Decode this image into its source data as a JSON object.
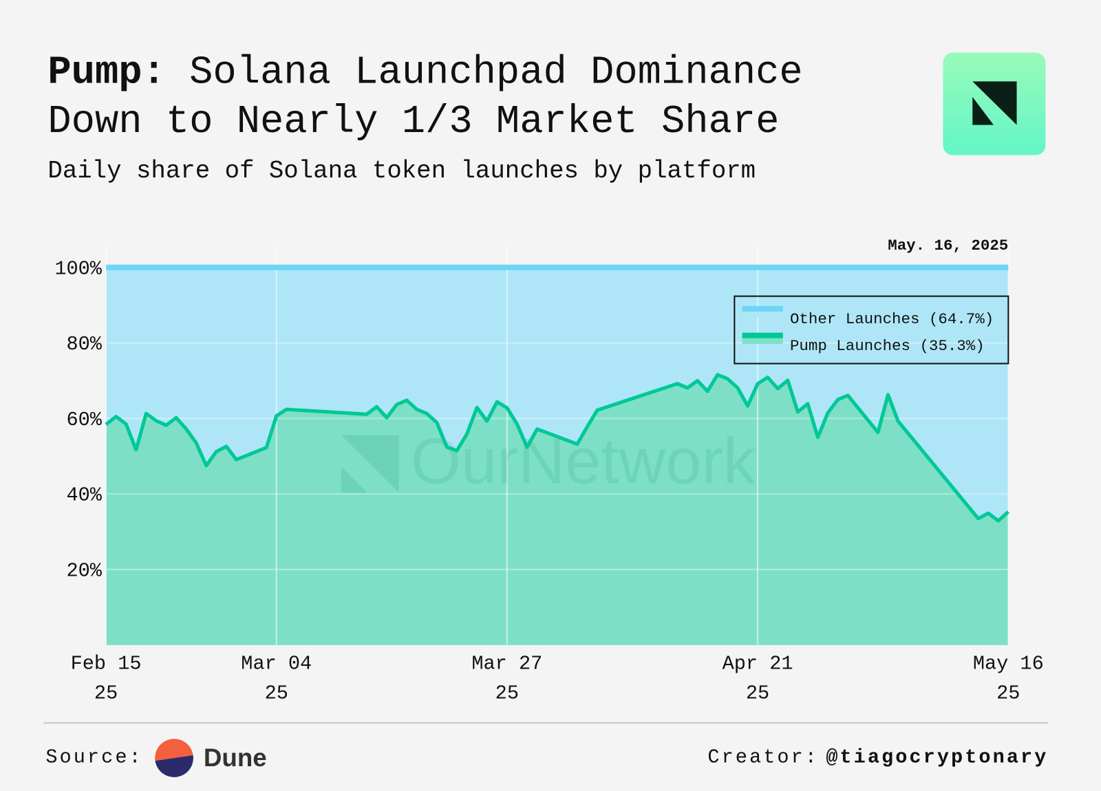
{
  "header": {
    "title_lead": "Pump:",
    "title": "Solana Launchpad Dominance Down to Nearly 1/3 Market Share",
    "subtitle": "Daily share of Solana token launches by platform"
  },
  "chart_data": {
    "type": "stacked_area",
    "annotation": "May. 16, 2025",
    "watermark": "OurNetwork",
    "x": [
      "2025-02-15",
      "2025-02-16",
      "2025-02-17",
      "2025-02-18",
      "2025-02-19",
      "2025-02-20",
      "2025-02-21",
      "2025-02-22",
      "2025-02-23",
      "2025-02-24",
      "2025-02-25",
      "2025-02-26",
      "2025-02-27",
      "2025-02-28",
      "2025-03-03",
      "2025-03-04",
      "2025-03-05",
      "2025-03-13",
      "2025-03-14",
      "2025-03-15",
      "2025-03-16",
      "2025-03-17",
      "2025-03-18",
      "2025-03-19",
      "2025-03-20",
      "2025-03-21",
      "2025-03-22",
      "2025-03-23",
      "2025-03-24",
      "2025-03-25",
      "2025-03-26",
      "2025-03-27",
      "2025-03-28",
      "2025-03-29",
      "2025-03-30",
      "2025-04-03",
      "2025-04-04",
      "2025-04-05",
      "2025-04-13",
      "2025-04-14",
      "2025-04-15",
      "2025-04-16",
      "2025-04-17",
      "2025-04-18",
      "2025-04-19",
      "2025-04-20",
      "2025-04-21",
      "2025-04-22",
      "2025-04-23",
      "2025-04-24",
      "2025-04-25",
      "2025-04-26",
      "2025-04-27",
      "2025-04-28",
      "2025-04-29",
      "2025-04-30",
      "2025-05-03",
      "2025-05-04",
      "2025-05-05",
      "2025-05-13",
      "2025-05-14",
      "2025-05-15",
      "2025-05-16"
    ],
    "series": [
      {
        "name": "Other Launches (64.7%)",
        "color": "#6dd5f7",
        "fill": "#aee6f7",
        "values": [
          41.6,
          39.5,
          41.5,
          48.3,
          38.7,
          40.6,
          41.8,
          39.8,
          42.8,
          46.5,
          52.5,
          48.8,
          47.4,
          50.9,
          47.7,
          39.3,
          37.6,
          38.9,
          36.9,
          39.8,
          36.3,
          35.2,
          37.6,
          38.7,
          41.1,
          47.6,
          48.5,
          44.1,
          37.1,
          40.7,
          35.6,
          37.2,
          41.5,
          47.6,
          42.8,
          46.8,
          42.2,
          37.8,
          30.8,
          31.9,
          30.0,
          32.8,
          28.4,
          29.5,
          31.9,
          36.7,
          30.8,
          29.1,
          32.1,
          29.9,
          38.3,
          36.1,
          45.0,
          38.5,
          35.0,
          33.9,
          43.7,
          33.7,
          40.7,
          66.5,
          65.1,
          67.1,
          64.7
        ]
      },
      {
        "name": "Pump Launches (35.3%)",
        "color": "#00c896",
        "fill": "#7de0c6",
        "values": [
          58.4,
          60.5,
          58.5,
          51.7,
          61.3,
          59.4,
          58.2,
          60.2,
          57.2,
          53.5,
          47.5,
          51.2,
          52.6,
          49.1,
          52.3,
          60.7,
          62.4,
          61.1,
          63.1,
          60.2,
          63.7,
          64.8,
          62.4,
          61.3,
          58.9,
          52.4,
          51.5,
          55.9,
          62.9,
          59.3,
          64.4,
          62.8,
          58.5,
          52.4,
          57.2,
          53.2,
          57.8,
          62.2,
          69.2,
          68.1,
          70.0,
          67.2,
          71.6,
          70.5,
          68.1,
          63.3,
          69.2,
          70.9,
          67.9,
          70.1,
          61.7,
          63.9,
          55.0,
          61.5,
          65.0,
          66.1,
          56.3,
          66.3,
          59.3,
          33.5,
          34.9,
          32.9,
          35.3
        ]
      }
    ],
    "xlim": [
      "2025-02-15",
      "2025-05-16"
    ],
    "xticks": [
      {
        "value": "2025-02-15",
        "label": "Feb 15\n25"
      },
      {
        "value": "2025-03-04",
        "label": "Mar 04\n25"
      },
      {
        "value": "2025-03-27",
        "label": "Mar 27\n25"
      },
      {
        "value": "2025-04-21",
        "label": "Apr 21\n25"
      },
      {
        "value": "2025-05-16",
        "label": "May 16\n25"
      }
    ],
    "ylim": [
      0,
      100
    ],
    "yticks": [
      {
        "value": 20,
        "label": "20%"
      },
      {
        "value": 40,
        "label": "40%"
      },
      {
        "value": 60,
        "label": "60%"
      },
      {
        "value": 80,
        "label": "80%"
      },
      {
        "value": 100,
        "label": "100%"
      }
    ],
    "grid": true,
    "legend": "upper right"
  },
  "footer": {
    "source_label": "Source:",
    "source": "Dune",
    "creator_label": "Creator:",
    "creator": "@tiagocryptonary"
  }
}
